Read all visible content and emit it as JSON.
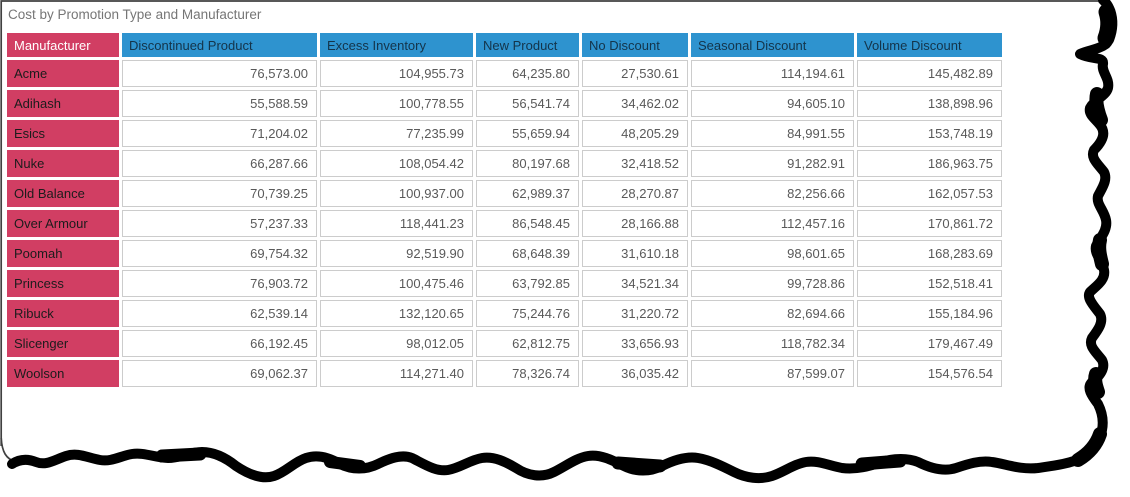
{
  "title": "Cost by Promotion Type and Manufacturer",
  "colors": {
    "title_text": "#767676",
    "row_header_bg": "#d13e63",
    "row_header_text": "#1c1c1c",
    "column_header_bg": "#2e93cf",
    "column_header_text": "#14344a",
    "value_text": "#595959",
    "gridline": "#cccccc",
    "torn_edge": "#000000",
    "frame_border": "#404040"
  },
  "table": {
    "columns": [
      "Manufacturer",
      "Discontinued Product",
      "Excess Inventory",
      "New Product",
      "No Discount",
      "Seasonal Discount",
      "Volume Discount"
    ],
    "rows": [
      {
        "manufacturer": "Acme",
        "values": [
          "76,573.00",
          "104,955.73",
          "64,235.80",
          "27,530.61",
          "114,194.61",
          "145,482.89"
        ]
      },
      {
        "manufacturer": "Adihash",
        "values": [
          "55,588.59",
          "100,778.55",
          "56,541.74",
          "34,462.02",
          "94,605.10",
          "138,898.96"
        ]
      },
      {
        "manufacturer": "Esics",
        "values": [
          "71,204.02",
          "77,235.99",
          "55,659.94",
          "48,205.29",
          "84,991.55",
          "153,748.19"
        ]
      },
      {
        "manufacturer": "Nuke",
        "values": [
          "66,287.66",
          "108,054.42",
          "80,197.68",
          "32,418.52",
          "91,282.91",
          "186,963.75"
        ]
      },
      {
        "manufacturer": "Old Balance",
        "values": [
          "70,739.25",
          "100,937.00",
          "62,989.37",
          "28,270.87",
          "82,256.66",
          "162,057.53"
        ]
      },
      {
        "manufacturer": "Over Armour",
        "values": [
          "57,237.33",
          "118,441.23",
          "86,548.45",
          "28,166.88",
          "112,457.16",
          "170,861.72"
        ]
      },
      {
        "manufacturer": "Poomah",
        "values": [
          "69,754.32",
          "92,519.90",
          "68,648.39",
          "31,610.18",
          "98,601.65",
          "168,283.69"
        ]
      },
      {
        "manufacturer": "Princess",
        "values": [
          "76,903.72",
          "100,475.46",
          "63,792.85",
          "34,521.34",
          "99,728.86",
          "152,518.41"
        ]
      },
      {
        "manufacturer": "Ribuck",
        "values": [
          "62,539.14",
          "132,120.65",
          "75,244.76",
          "31,220.72",
          "82,694.66",
          "155,184.96"
        ]
      },
      {
        "manufacturer": "Slicenger",
        "values": [
          "66,192.45",
          "98,012.05",
          "62,812.75",
          "33,656.93",
          "118,782.34",
          "179,467.49"
        ]
      },
      {
        "manufacturer": "Woolson",
        "values": [
          "69,062.37",
          "114,271.40",
          "78,326.74",
          "36,035.42",
          "87,599.07",
          "154,576.54"
        ]
      }
    ]
  },
  "chart_data": {
    "type": "table",
    "title": "Cost by Promotion Type and Manufacturer",
    "columns": [
      "Manufacturer",
      "Discontinued Product",
      "Excess Inventory",
      "New Product",
      "No Discount",
      "Seasonal Discount",
      "Volume Discount"
    ],
    "rows": [
      [
        "Acme",
        76573.0,
        104955.73,
        64235.8,
        27530.61,
        114194.61,
        145482.89
      ],
      [
        "Adihash",
        55588.59,
        100778.55,
        56541.74,
        34462.02,
        94605.1,
        138898.96
      ],
      [
        "Esics",
        71204.02,
        77235.99,
        55659.94,
        48205.29,
        84991.55,
        153748.19
      ],
      [
        "Nuke",
        66287.66,
        108054.42,
        80197.68,
        32418.52,
        91282.91,
        186963.75
      ],
      [
        "Old Balance",
        70739.25,
        100937.0,
        62989.37,
        28270.87,
        82256.66,
        162057.53
      ],
      [
        "Over Armour",
        57237.33,
        118441.23,
        86548.45,
        28166.88,
        112457.16,
        170861.72
      ],
      [
        "Poomah",
        69754.32,
        92519.9,
        68648.39,
        31610.18,
        98601.65,
        168283.69
      ],
      [
        "Princess",
        76903.72,
        100475.46,
        63792.85,
        34521.34,
        99728.86,
        152518.41
      ],
      [
        "Ribuck",
        62539.14,
        132120.65,
        75244.76,
        31220.72,
        82694.66,
        155184.96
      ],
      [
        "Slicenger",
        66192.45,
        98012.05,
        62812.75,
        33656.93,
        118782.34,
        179467.49
      ],
      [
        "Woolson",
        69062.37,
        114271.4,
        78326.74,
        36035.42,
        87599.07,
        154576.54
      ]
    ]
  }
}
